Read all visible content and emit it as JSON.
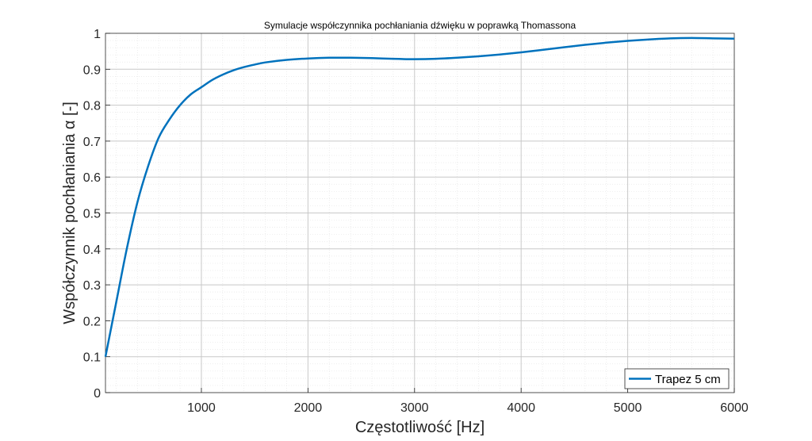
{
  "chart_data": {
    "type": "line",
    "title": "Symulacje współczynnika pochłaniania dźwięku w poprawką Thomassona",
    "xlabel": "Częstotliwość [Hz]",
    "ylabel": "Współczynnik pochłaniania α [-]",
    "xlim": [
      100,
      6000
    ],
    "ylim": [
      0,
      1
    ],
    "x_ticks": [
      1000,
      2000,
      3000,
      4000,
      5000,
      6000
    ],
    "y_ticks": [
      0,
      0.1,
      0.2,
      0.3,
      0.4,
      0.5,
      0.6,
      0.7,
      0.8,
      0.9,
      1
    ],
    "x_tick_labels": [
      "1000",
      "2000",
      "3000",
      "4000",
      "5000",
      "6000"
    ],
    "y_tick_labels": [
      "0",
      "0.1",
      "0.2",
      "0.3",
      "0.4",
      "0.5",
      "0.6",
      "0.7",
      "0.8",
      "0.9",
      "1"
    ],
    "grid": true,
    "minor_grid": true,
    "legend_position": "bottom-right",
    "line_color": "#0072BD",
    "series": [
      {
        "name": "Trapez 5 cm",
        "x": [
          100,
          200,
          300,
          400,
          500,
          600,
          700,
          800,
          900,
          1000,
          1100,
          1200,
          1300,
          1400,
          1500,
          1600,
          1800,
          2000,
          2200,
          2400,
          2600,
          2800,
          3000,
          3200,
          3400,
          3600,
          3800,
          4000,
          4200,
          4400,
          4600,
          4800,
          5000,
          5200,
          5400,
          5600,
          5800,
          6000
        ],
        "y": [
          0.1,
          0.25,
          0.4,
          0.53,
          0.63,
          0.71,
          0.76,
          0.8,
          0.83,
          0.85,
          0.87,
          0.885,
          0.897,
          0.906,
          0.913,
          0.919,
          0.926,
          0.93,
          0.932,
          0.932,
          0.931,
          0.929,
          0.928,
          0.929,
          0.932,
          0.936,
          0.941,
          0.947,
          0.954,
          0.961,
          0.968,
          0.974,
          0.979,
          0.983,
          0.986,
          0.987,
          0.986,
          0.985
        ]
      }
    ]
  }
}
